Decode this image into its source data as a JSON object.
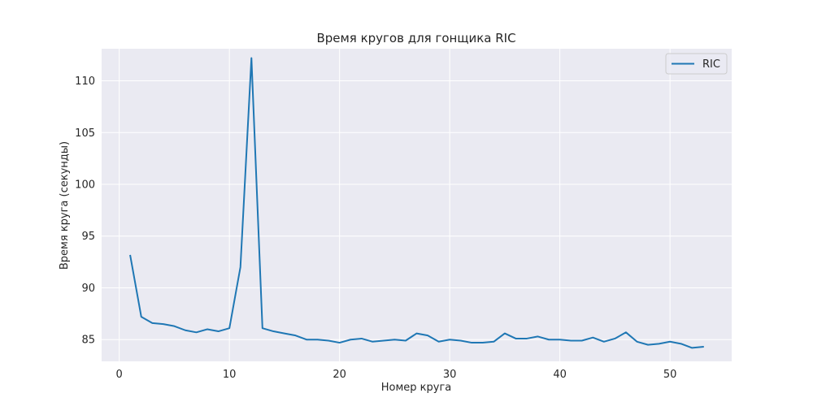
{
  "chart_data": {
    "type": "line",
    "title": "Время кругов для гонщика RIC",
    "xlabel": "Номер круга",
    "ylabel": "Время круга (секунды)",
    "xlim": [
      -1.6,
      55.6
    ],
    "ylim": [
      82.9,
      113.1
    ],
    "xticks": [
      0,
      10,
      20,
      30,
      40,
      50
    ],
    "yticks": [
      85,
      90,
      95,
      100,
      105,
      110
    ],
    "grid": true,
    "legend_position": "top-right",
    "colors": {
      "plot_bg": "#eaeaf2",
      "grid": "#ffffff",
      "series": "#1f77b4"
    },
    "series": [
      {
        "name": "RIC",
        "x": [
          1,
          2,
          3,
          4,
          5,
          6,
          7,
          8,
          9,
          10,
          11,
          12,
          13,
          14,
          15,
          16,
          17,
          18,
          19,
          20,
          21,
          22,
          23,
          24,
          25,
          26,
          27,
          28,
          29,
          30,
          31,
          32,
          33,
          34,
          35,
          36,
          37,
          38,
          39,
          40,
          41,
          42,
          43,
          44,
          45,
          46,
          47,
          48,
          49,
          50,
          51,
          52,
          53
        ],
        "values": [
          93.1,
          87.2,
          86.6,
          86.5,
          86.3,
          85.9,
          85.7,
          86.0,
          85.8,
          86.1,
          92.0,
          112.2,
          86.1,
          85.8,
          85.6,
          85.4,
          85.0,
          85.0,
          84.9,
          84.7,
          85.0,
          85.1,
          84.8,
          84.9,
          85.0,
          84.9,
          85.6,
          85.4,
          84.8,
          85.0,
          84.9,
          84.7,
          84.7,
          84.8,
          85.6,
          85.1,
          85.1,
          85.3,
          85.0,
          85.0,
          84.9,
          84.9,
          85.2,
          84.8,
          85.1,
          85.7,
          84.8,
          84.5,
          84.6,
          84.8,
          84.6,
          84.2,
          84.3
        ]
      }
    ]
  }
}
